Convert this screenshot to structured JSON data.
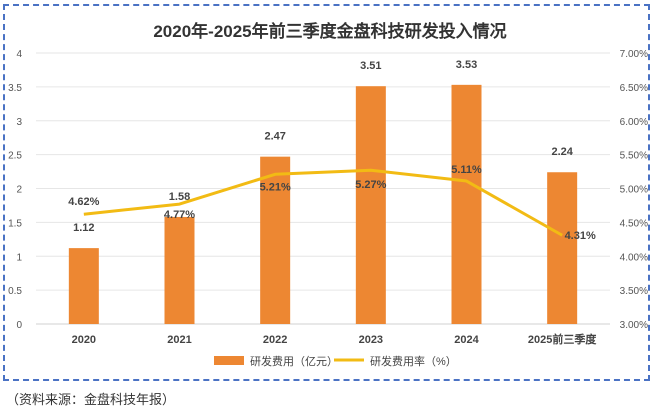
{
  "chart_data": {
    "type": "bar+line",
    "title": "2020年-2025年前三季度金盘科技研发投入情况",
    "categories": [
      "2020",
      "2021",
      "2022",
      "2023",
      "2024",
      "2025前三季度"
    ],
    "series": [
      {
        "name": "研发费用（亿元）",
        "type": "bar",
        "axis": "left",
        "color": "#ed8732",
        "values": [
          1.12,
          1.58,
          2.47,
          3.51,
          3.53,
          2.24
        ],
        "labels": [
          "1.12",
          "1.58",
          "2.47",
          "3.51",
          "3.53",
          "2.24"
        ]
      },
      {
        "name": "研发费用率（%）",
        "type": "line",
        "axis": "right",
        "color": "#f2bb14",
        "values": [
          4.62,
          4.77,
          5.21,
          5.27,
          5.11,
          4.31
        ],
        "labels": [
          "4.62%",
          "4.77%",
          "5.21%",
          "5.27%",
          "5.11%",
          "4.31%"
        ]
      }
    ],
    "left_axis": {
      "min": 0,
      "max": 4,
      "ticks": [
        "0",
        "0.5",
        "1",
        "1.5",
        "2",
        "2.5",
        "3",
        "3.5",
        "4"
      ]
    },
    "right_axis": {
      "min": 3,
      "max": 7,
      "ticks": [
        "3.00%",
        "3.50%",
        "4.00%",
        "4.50%",
        "5.00%",
        "5.50%",
        "6.00%",
        "6.50%",
        "7.00%"
      ]
    },
    "legend": "bottom",
    "grid": true
  },
  "source": "（资料来源：金盘科技年报）"
}
